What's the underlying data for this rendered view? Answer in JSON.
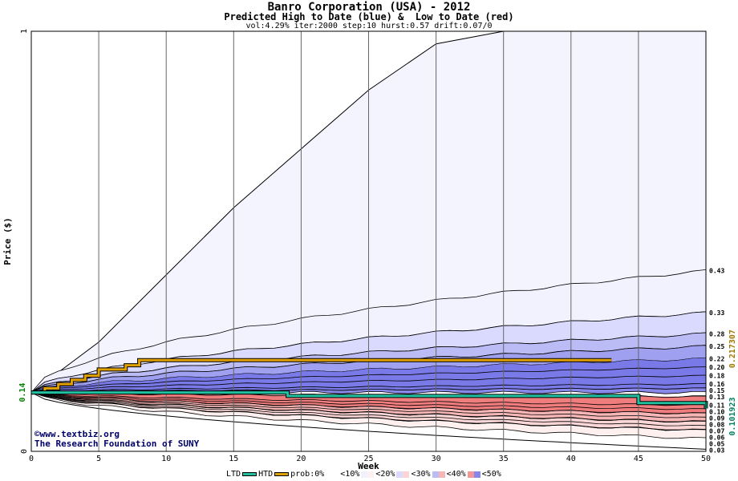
{
  "header": {
    "title": "Banro Corporation (USA) - 2012",
    "subtitle": "Predicted High to Date (blue) &  Low to Date (red)",
    "params": "vol:4.29% iter:2000 step:10 hurst:0.57 drift:0.07/0"
  },
  "watermark": {
    "line1": "©www.textbiz.org",
    "line2": "The Research Foundation of SUNY"
  },
  "legend": {
    "ltd": "LTD",
    "htd": "HTD",
    "prob": "prob:0%",
    "b10": "<10%",
    "b20": "<20%",
    "b30": "<30%",
    "b40": "<40%",
    "b50": "<50%"
  },
  "chart_data": {
    "type": "area",
    "xlabel": "Week",
    "ylabel": "Price ($)",
    "xlim": [
      0,
      50
    ],
    "ylim": [
      0,
      1
    ],
    "x_ticks": [
      0,
      5,
      10,
      15,
      20,
      25,
      30,
      35,
      40,
      45,
      50
    ],
    "y_ticks": [
      0,
      1
    ],
    "start_price_label": "0.14",
    "start_price": 0.14,
    "htd_value_label": "0.217307",
    "htd_value": 0.217307,
    "ltd_value_label": "0.101923",
    "ltd_value": 0.101923,
    "right_labels": [
      "0.43",
      "0.33",
      "0.28",
      "0.25",
      "0.22",
      "0.20",
      "0.18",
      "0.16",
      "0.15",
      "0.13",
      "0.11",
      "0.10",
      "0.09",
      "0.08",
      "0.07",
      "0.06",
      "0.05",
      "0.03"
    ],
    "right_label_values": [
      0.43,
      0.33,
      0.28,
      0.25,
      0.22,
      0.2,
      0.18,
      0.16,
      0.15,
      0.13,
      0.11,
      0.1,
      0.09,
      0.08,
      0.07,
      0.06,
      0.05,
      0.03
    ],
    "series": [
      {
        "name": "HTD",
        "color": "#e0a000",
        "x": [
          0,
          1,
          2,
          3,
          4,
          5,
          6,
          7,
          8,
          9,
          10,
          20,
          30,
          40,
          43
        ],
        "y": [
          0.14,
          0.15,
          0.16,
          0.17,
          0.18,
          0.195,
          0.195,
          0.205,
          0.217,
          0.217,
          0.217,
          0.217,
          0.217,
          0.217,
          0.217
        ]
      },
      {
        "name": "LTD",
        "color": "#20c0a0",
        "x": [
          0,
          5,
          10,
          15,
          18,
          19,
          25,
          30,
          40,
          45,
          50
        ],
        "y": [
          0.14,
          0.14,
          0.14,
          0.14,
          0.14,
          0.132,
          0.132,
          0.132,
          0.132,
          0.115,
          0.102
        ]
      }
    ],
    "high_bands": [
      {
        "label": "0.43",
        "fill": "#f2f2ff",
        "y_end": 0.43
      },
      {
        "label": "0.33",
        "fill": "#dadaff",
        "y_end": 0.33
      },
      {
        "label": "0.28",
        "fill": "#bbbbf5",
        "y_end": 0.28
      },
      {
        "label": "0.25",
        "fill": "#a0a0f0",
        "y_end": 0.25
      },
      {
        "label": "0.22",
        "fill": "#8888ea",
        "y_end": 0.22
      }
    ],
    "low_bands": [
      {
        "label": "0.03",
        "fill": "#fff0f0",
        "y_end": 0.03
      },
      {
        "label": "0.05",
        "fill": "#fbd6d6",
        "y_end": 0.05
      },
      {
        "label": "0.07",
        "fill": "#f7b6b6",
        "y_end": 0.07
      },
      {
        "label": "0.09",
        "fill": "#f39898",
        "y_end": 0.09
      }
    ],
    "outer_envelope_top_y": [
      0.14,
      0.26,
      0.42,
      0.58,
      0.72,
      0.86,
      0.97,
      1.0,
      1.0,
      1.0,
      1.0
    ],
    "colors": {
      "high": "#6666dd",
      "low": "#ee6666",
      "frame": "#000000"
    }
  }
}
